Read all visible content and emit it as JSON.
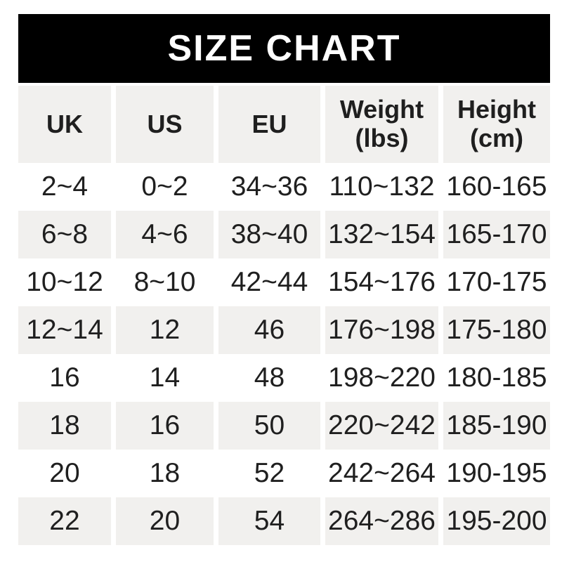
{
  "title": "SIZE CHART",
  "colors": {
    "banner_bg": "#000000",
    "banner_text": "#ffffff",
    "stripe_bg": "#f1f0ee",
    "row_bg": "#ffffff",
    "text": "#1f1f1f",
    "page_bg": "#ffffff"
  },
  "chart_data": {
    "type": "table",
    "title": "SIZE CHART",
    "columns": [
      "UK",
      "US",
      "EU",
      "Weight (lbs)",
      "Height (cm)"
    ],
    "header_lines": [
      [
        "UK"
      ],
      [
        "US"
      ],
      [
        "EU"
      ],
      [
        "Weight",
        "(lbs)"
      ],
      [
        "Height",
        "(cm)"
      ]
    ],
    "rows": [
      [
        "2~4",
        "0~2",
        "34~36",
        "110~132",
        "160-165"
      ],
      [
        "6~8",
        "4~6",
        "38~40",
        "132~154",
        "165-170"
      ],
      [
        "10~12",
        "8~10",
        "42~44",
        "154~176",
        "170-175"
      ],
      [
        "12~14",
        "12",
        "46",
        "176~198",
        "175-180"
      ],
      [
        "16",
        "14",
        "48",
        "198~220",
        "180-185"
      ],
      [
        "18",
        "16",
        "50",
        "220~242",
        "185-190"
      ],
      [
        "20",
        "18",
        "52",
        "242~264",
        "190-195"
      ],
      [
        "22",
        "20",
        "54",
        "264~286",
        "195-200"
      ]
    ],
    "layout": {
      "legend": "none",
      "grid": "striped-rows",
      "stripe_order": "header-gray-then-alternating-from-white"
    }
  }
}
